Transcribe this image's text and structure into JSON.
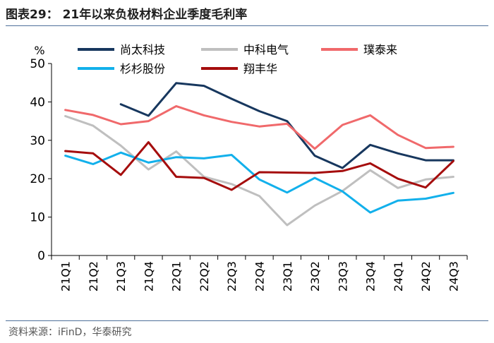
{
  "header": {
    "title": "图表29：  21年以来负极材料企业季度毛利率"
  },
  "footer": {
    "source": "资料来源：iFinD，华泰研究"
  },
  "chart_data": {
    "type": "line",
    "title": "21年以来负极材料企业季度毛利率",
    "ylabel": "%",
    "xlabel": "",
    "ylim": [
      0,
      50
    ],
    "yticks": [
      0,
      10,
      20,
      30,
      40,
      50
    ],
    "categories": [
      "21Q1",
      "21Q2",
      "21Q3",
      "21Q4",
      "22Q1",
      "22Q2",
      "22Q3",
      "22Q4",
      "23Q1",
      "23Q2",
      "23Q3",
      "23Q4",
      "24Q1",
      "24Q2",
      "24Q3"
    ],
    "legend_position": "top",
    "grid": false,
    "series": [
      {
        "name": "尚太科技",
        "color": "#17375e",
        "values": [
          null,
          null,
          39.4,
          36.4,
          44.9,
          44.2,
          40.8,
          37.6,
          35.0,
          26.0,
          22.8,
          28.8,
          26.6,
          24.8,
          24.8
        ]
      },
      {
        "name": "中科电气",
        "color": "#bfbfbf",
        "values": [
          36.3,
          33.8,
          28.6,
          22.4,
          27.1,
          20.5,
          18.6,
          15.5,
          7.9,
          13.0,
          16.8,
          22.2,
          17.6,
          19.8,
          20.5
        ]
      },
      {
        "name": "璞泰来",
        "color": "#f0696b",
        "values": [
          37.9,
          36.6,
          34.2,
          35.0,
          38.9,
          36.5,
          34.8,
          33.6,
          34.3,
          27.8,
          34.0,
          36.5,
          31.4,
          28.0,
          28.3
        ]
      },
      {
        "name": "杉杉股份",
        "color": "#12b0eb",
        "values": [
          26.0,
          23.8,
          26.8,
          24.2,
          25.6,
          25.3,
          26.2,
          19.8,
          16.4,
          20.2,
          16.7,
          11.2,
          14.3,
          14.8,
          16.3
        ]
      },
      {
        "name": "翔丰华",
        "color": "#a50d0d",
        "values": [
          27.2,
          26.6,
          21.0,
          29.5,
          20.5,
          20.2,
          17.1,
          21.7,
          21.6,
          21.5,
          22.0,
          24.0,
          20.0,
          17.7,
          24.6
        ]
      }
    ]
  }
}
